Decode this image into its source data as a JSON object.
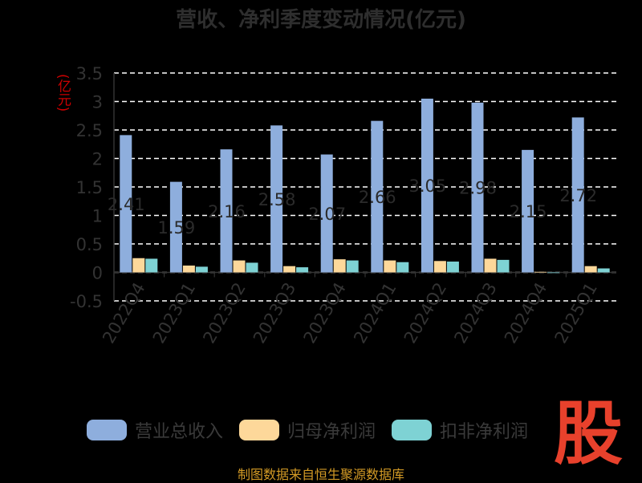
{
  "title": "营收、净利季度变动情况(亿元)",
  "y_unit": "(亿元)",
  "source": "制图数据来自恒生聚源数据库",
  "logo_text": "股",
  "colors": {
    "revenue": "#8eaedd",
    "net_profit": "#fdd89a",
    "deducted": "#7ed2d4",
    "grid": "#ffffff",
    "axis_text": "#333333"
  },
  "chart_data": {
    "type": "bar",
    "categories": [
      "2022Q4",
      "2023Q1",
      "2023Q2",
      "2023Q3",
      "2023Q4",
      "2024Q1",
      "2024Q2",
      "2024Q3",
      "2024Q4",
      "2025Q1"
    ],
    "y_ticks": [
      "3.5",
      "3",
      "2.5",
      "2",
      "1.5",
      "1",
      "0.5",
      "0",
      "-0.5"
    ],
    "ylim": [
      -0.5,
      3.5
    ],
    "grid": true,
    "legend_position": "bottom",
    "series": [
      {
        "name": "营业总收入",
        "values": [
          2.41,
          1.59,
          2.16,
          2.58,
          2.07,
          2.66,
          3.05,
          2.98,
          2.15,
          2.72
        ]
      },
      {
        "name": "归母净利润",
        "values": [
          0.25,
          0.12,
          0.21,
          0.11,
          0.23,
          0.21,
          0.2,
          0.24,
          0.01,
          0.11
        ]
      },
      {
        "name": "扣非净利润",
        "values": [
          0.24,
          0.1,
          0.17,
          0.09,
          0.21,
          0.18,
          0.19,
          0.22,
          0.0,
          0.07
        ]
      }
    ],
    "data_labels": [
      "2.41",
      "1.59",
      "2.16",
      "2.58",
      "2.07",
      "2.66",
      "3.05",
      "2.98",
      "2.15",
      "2.72"
    ]
  }
}
